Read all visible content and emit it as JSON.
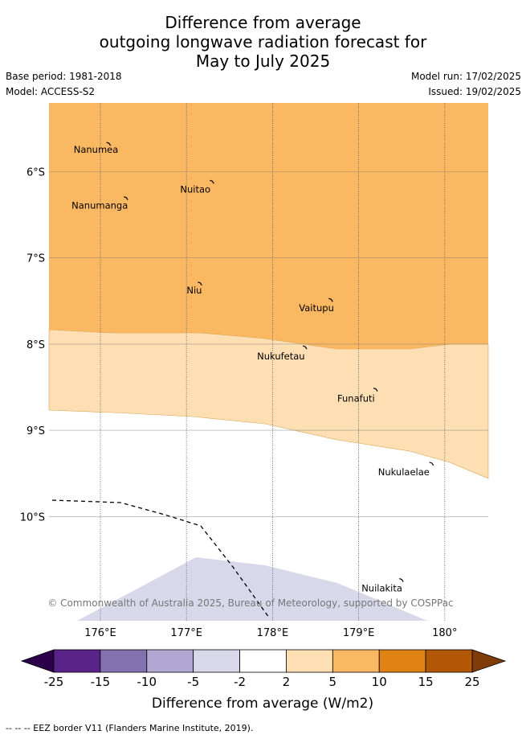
{
  "title": {
    "line1": "Difference from average",
    "line2": "outgoing longwave radiation forecast for",
    "line3": "May to July 2025"
  },
  "meta": {
    "base_period": "Base period: 1981-2018",
    "model": "Model: ACCESS-S2",
    "model_run": "Model run: 17/02/2025",
    "issued": "Issued: 19/02/2025"
  },
  "map": {
    "lat_labels": [
      "6°S",
      "7°S",
      "8°S",
      "9°S",
      "10°S"
    ],
    "lon_labels": [
      "176°E",
      "177°E",
      "178°E",
      "179°E",
      "180°"
    ],
    "places": [
      {
        "name": "Nanumea",
        "lon": 176.1,
        "lat": -5.67
      },
      {
        "name": "Nuitao",
        "lon": 177.3,
        "lat": -6.11
      },
      {
        "name": "Nanumanga",
        "lon": 176.3,
        "lat": -6.3
      },
      {
        "name": "Niu",
        "lon": 177.16,
        "lat": -7.29
      },
      {
        "name": "Vaitupu",
        "lon": 178.68,
        "lat": -7.48
      },
      {
        "name": "Nukufetau",
        "lon": 178.38,
        "lat": -8.03
      },
      {
        "name": "Funafuti",
        "lon": 179.2,
        "lat": -8.52
      },
      {
        "name": "Nukulaelae",
        "lon": 179.85,
        "lat": -9.38
      },
      {
        "name": "Nuilakita",
        "lon": 179.5,
        "lat": -10.73
      }
    ],
    "copyright": "© Commonwealth of Australia 2025, Bureau of Meteorology, supported by COSPPac"
  },
  "colorbar": {
    "colors": [
      "#5a2389",
      "#8372b0",
      "#b2a8d3",
      "#d9d8ea",
      "#ffffff",
      "#fddfb3",
      "#fbb863",
      "#e08214",
      "#b35806"
    ],
    "under_color": "#2d004b",
    "over_color": "#7f3b08",
    "tick_labels": [
      "-25",
      "-15",
      "-10",
      "-5",
      "-2",
      "2",
      "5",
      "10",
      "15",
      "25"
    ],
    "label": "Difference from average (W/m2)"
  },
  "footer": {
    "legend_note": "--  --  -- EEZ border V11 (Flanders Marine Institute, 2019)."
  }
}
